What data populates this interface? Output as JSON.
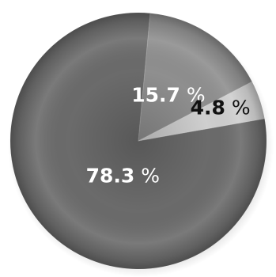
{
  "chart_data": {
    "type": "pie",
    "title": "",
    "categories": [
      "",
      "",
      ""
    ],
    "values": [
      78.3,
      15.7,
      4.8
    ],
    "labels": [
      {
        "value": "78.3",
        "unit": "%"
      },
      {
        "value": "15.7",
        "unit": "%"
      },
      {
        "value": "4.8",
        "unit": "%"
      }
    ],
    "colors": [
      "#6b6b6b",
      "#8f8f8f",
      "#cfcfcf"
    ],
    "label_colors": [
      "#ffffff",
      "#ffffff",
      "#111111"
    ],
    "legend": false
  }
}
